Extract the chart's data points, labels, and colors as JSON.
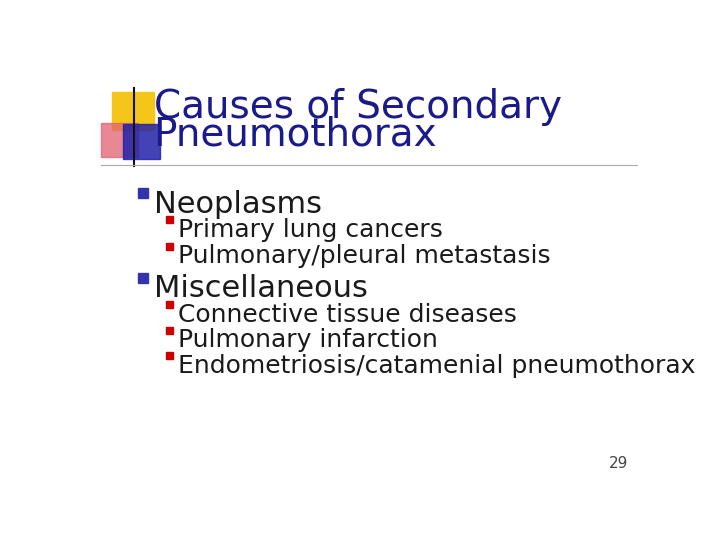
{
  "title_line1": "Causes of Secondary",
  "title_line2": "Pneumothorax",
  "title_color": "#1a1a8c",
  "title_fontsize": 28,
  "background_color": "#ffffff",
  "slide_number": "29",
  "bullet1": "Neoplasms",
  "bullet1_color": "#1a1a1a",
  "bullet1_marker_color": "#3333aa",
  "sub_bullets1": [
    "Primary lung cancers",
    "Pulmonary/pleural metastasis"
  ],
  "bullet2": "Miscellaneous",
  "bullet2_color": "#1a1a1a",
  "bullet2_marker_color": "#3333aa",
  "sub_bullets2": [
    "Connective tissue diseases",
    "Pulmonary infarction",
    "Endometriosis/catamenial pneumothorax"
  ],
  "sub_bullet_marker_color": "#cc0000",
  "bullet_fontsize": 22,
  "sub_bullet_fontsize": 18,
  "slide_num_fontsize": 11,
  "deco_yellow": "#f5c518",
  "deco_red_color": "#e06070",
  "deco_blue": "#2222aa",
  "line_color": "#888888"
}
